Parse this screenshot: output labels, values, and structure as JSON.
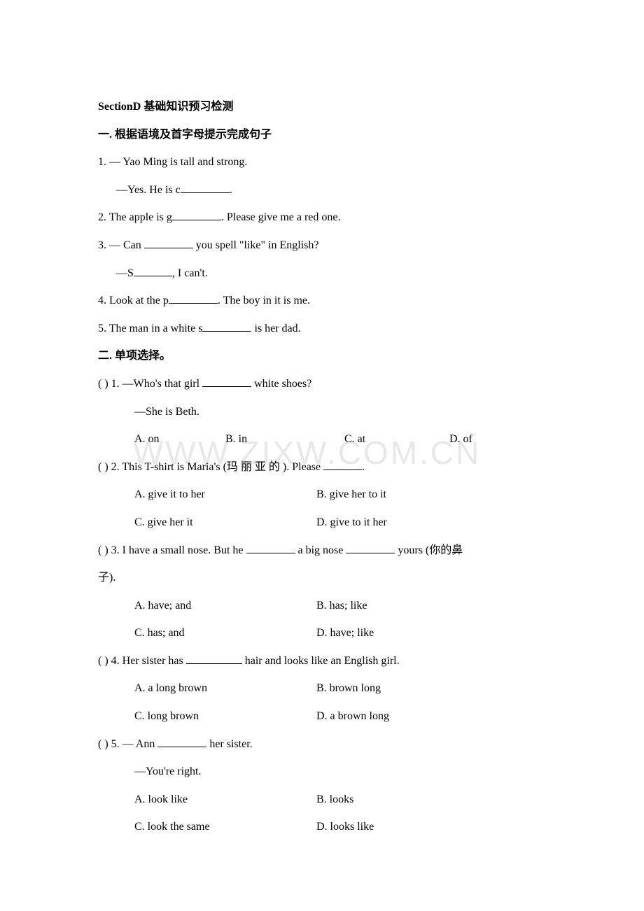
{
  "colors": {
    "background": "#ffffff",
    "text": "#000000",
    "watermark": "#e8e8e8",
    "blank_border": "#000000"
  },
  "typography": {
    "body_fontsize": 16,
    "watermark_fontsize": 46,
    "font_family": "Times New Roman, SimSun, serif"
  },
  "watermark": "WWW.ZIXW.COM.CN",
  "header": {
    "section_title": "SectionD  基础知识预习检测",
    "part1_title": "一. 根据语境及首字母提示完成句子"
  },
  "part1": {
    "q1_line1": "1. — Yao Ming is tall and strong.",
    "q1_line2_pre": "—Yes. He is c",
    "q1_line2_post": ".",
    "q2_pre": "2. The apple is g",
    "q2_post": ". Please give me a red one.",
    "q3_line1_pre": "3. — Can  ",
    "q3_line1_post": "  you spell \"like\" in English?",
    "q3_line2_pre": "—S",
    "q3_line2_post": ", I can't.",
    "q4_pre": "4.   Look at the p",
    "q4_post": ". The boy in it is me.",
    "q5_pre": "5. The man in a white s",
    "q5_post": "  is her dad."
  },
  "part2": {
    "title": "二. 单项选择。",
    "q1": {
      "paren": "(      ) ",
      "stem_pre": "1. —Who's that girl  ",
      "stem_post": "  white shoes?",
      "line2": "—She is Beth.",
      "a": "A. on",
      "b": "B. in",
      "c": "C. at",
      "d": "D. of"
    },
    "q2": {
      "paren": "(      ) ",
      "stem_pre": "2. This T-shirt is Maria's (玛 丽 亚 的 ). Please ",
      "stem_post": ".",
      "a": "A. give it to her",
      "b": "B. give her to it",
      "c": "C. give her it",
      "d": "D. give to it her"
    },
    "q3": {
      "paren": "(      ) ",
      "stem_pre": "3. I have a small nose. But he  ",
      "stem_mid": "  a big nose  ",
      "stem_post": "  yours (你的鼻",
      "stem_cont": "子).",
      "a": "A. have; and",
      "b": "B. has; like",
      "c": "C. has; and",
      "d": "D. have; like"
    },
    "q4": {
      "paren": "(      ) ",
      "stem_pre": "4. Her sister has  ",
      "stem_post": "  hair and looks like an English girl.",
      "a": "A. a long brown",
      "b": "B. brown long",
      "c": "C. long brown",
      "d": "D. a brown long"
    },
    "q5": {
      "paren": "(      ) ",
      "stem_pre": "5. — Ann  ",
      "stem_post": "  her sister.",
      "line2": "—You're right.",
      "a": "A. look like",
      "b": "B. looks",
      "c": "C. look the same",
      "d": "D. looks like"
    }
  }
}
